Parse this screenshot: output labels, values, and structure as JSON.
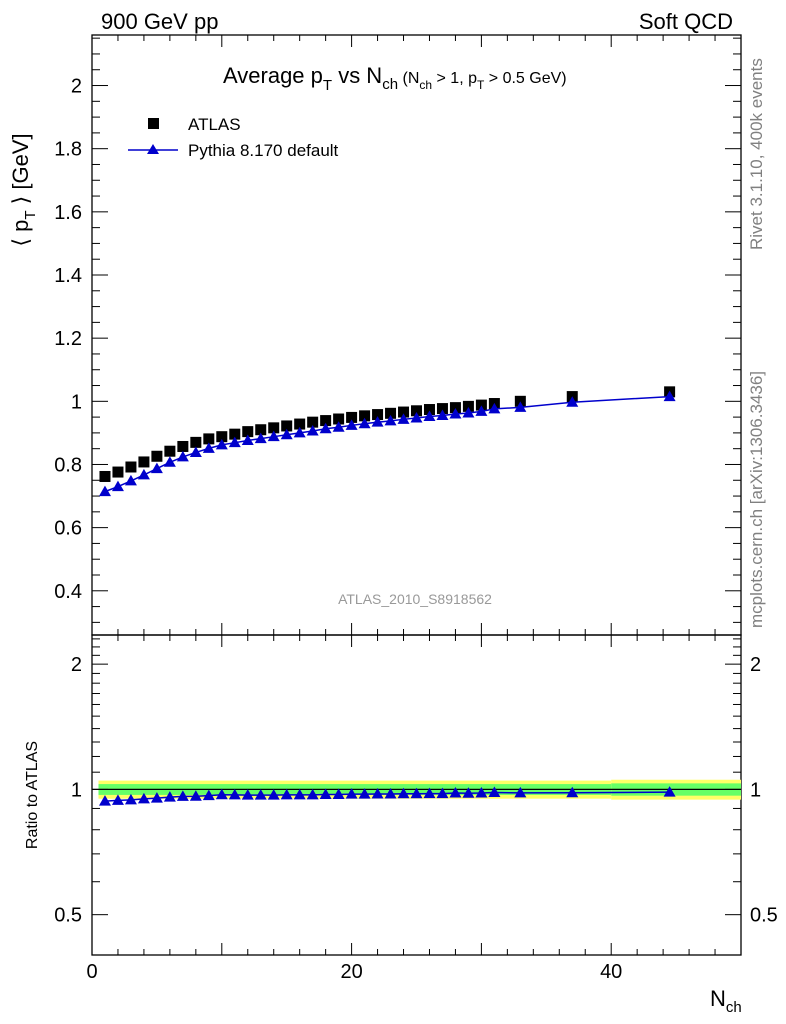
{
  "header": {
    "left": "900 GeV pp",
    "right": "Soft QCD"
  },
  "side_labels": {
    "rivet": "Rivet 3.1.10,  400k events",
    "mcplots": "mcplots.cern.ch [arXiv:1306.3436]"
  },
  "chart_data": {
    "type": "scatter",
    "title": {
      "main_a": "Average p",
      "main_a_sub": "T",
      "main_b": " vs N",
      "main_b_sub": "ch",
      "cond_a": " (N",
      "cond_a_sub": "ch",
      "cond_b": " > 1, p",
      "cond_b_sub": "T",
      "cond_c": " > 0.5 GeV)"
    },
    "ylabel": {
      "open": "⟨ p",
      "sub": "T",
      "close": " ⟩  [GeV]"
    },
    "xlabel": {
      "main": "N",
      "sub": "ch"
    },
    "ratio_ylabel": "Ratio to ATLAS",
    "analysis_label": "ATLAS_2010_S8918562",
    "legend": [
      "ATLAS",
      "Pythia 8.170 default"
    ],
    "legend_position": "top-left",
    "colors": {
      "data": "#000000",
      "mc": "#0000cc",
      "band_inner": "#66ff66",
      "band_outer": "#ffff66"
    },
    "xlim": [
      0,
      50
    ],
    "ylim": [
      0.26,
      2.16
    ],
    "ratio_ylim": [
      0.4,
      2.35
    ],
    "x_major_ticks": [
      0,
      20,
      40
    ],
    "y_major_ticks": [
      0.4,
      0.6,
      0.8,
      1,
      1.2,
      1.4,
      1.6,
      1.8,
      2
    ],
    "ratio_major_ticks": [
      0.5,
      1,
      2
    ],
    "series": [
      {
        "name": "ATLAS",
        "x": [
          1,
          2,
          3,
          4,
          5,
          6,
          7,
          8,
          9,
          10,
          11,
          12,
          13,
          14,
          15,
          16,
          17,
          18,
          19,
          20,
          21,
          22,
          23,
          24,
          25,
          26,
          27,
          28,
          29,
          30,
          31,
          33,
          37,
          44.5
        ],
        "y": [
          0.762,
          0.776,
          0.792,
          0.808,
          0.826,
          0.842,
          0.857,
          0.87,
          0.881,
          0.888,
          0.896,
          0.904,
          0.91,
          0.916,
          0.922,
          0.928,
          0.934,
          0.939,
          0.944,
          0.949,
          0.954,
          0.958,
          0.962,
          0.966,
          0.97,
          0.974,
          0.977,
          0.98,
          0.984,
          0.988,
          0.993,
          1.0,
          1.015,
          1.03
        ]
      },
      {
        "name": "Pythia 8.170 default",
        "x": [
          1,
          2,
          3,
          4,
          5,
          6,
          7,
          8,
          9,
          10,
          11,
          12,
          13,
          14,
          15,
          16,
          17,
          18,
          19,
          20,
          21,
          22,
          23,
          24,
          25,
          26,
          27,
          28,
          29,
          30,
          31,
          33,
          37,
          44.5
        ],
        "y": [
          0.714,
          0.73,
          0.748,
          0.767,
          0.787,
          0.807,
          0.824,
          0.838,
          0.851,
          0.862,
          0.869,
          0.876,
          0.882,
          0.888,
          0.894,
          0.9,
          0.906,
          0.913,
          0.918,
          0.924,
          0.929,
          0.934,
          0.938,
          0.943,
          0.947,
          0.952,
          0.955,
          0.96,
          0.963,
          0.968,
          0.976,
          0.981,
          0.997,
          1.015
        ],
        "ratio": [
          0.937,
          0.941,
          0.944,
          0.949,
          0.953,
          0.958,
          0.962,
          0.963,
          0.966,
          0.971,
          0.97,
          0.969,
          0.969,
          0.969,
          0.97,
          0.97,
          0.97,
          0.972,
          0.972,
          0.974,
          0.974,
          0.975,
          0.975,
          0.976,
          0.976,
          0.977,
          0.977,
          0.98,
          0.979,
          0.98,
          0.983,
          0.981,
          0.982,
          0.985
        ]
      }
    ],
    "uncertainty_band": {
      "x_edges": [
        0.5,
        40,
        50
      ],
      "inner": [
        0.03,
        0.034
      ],
      "outer": [
        0.05,
        0.055
      ]
    }
  }
}
